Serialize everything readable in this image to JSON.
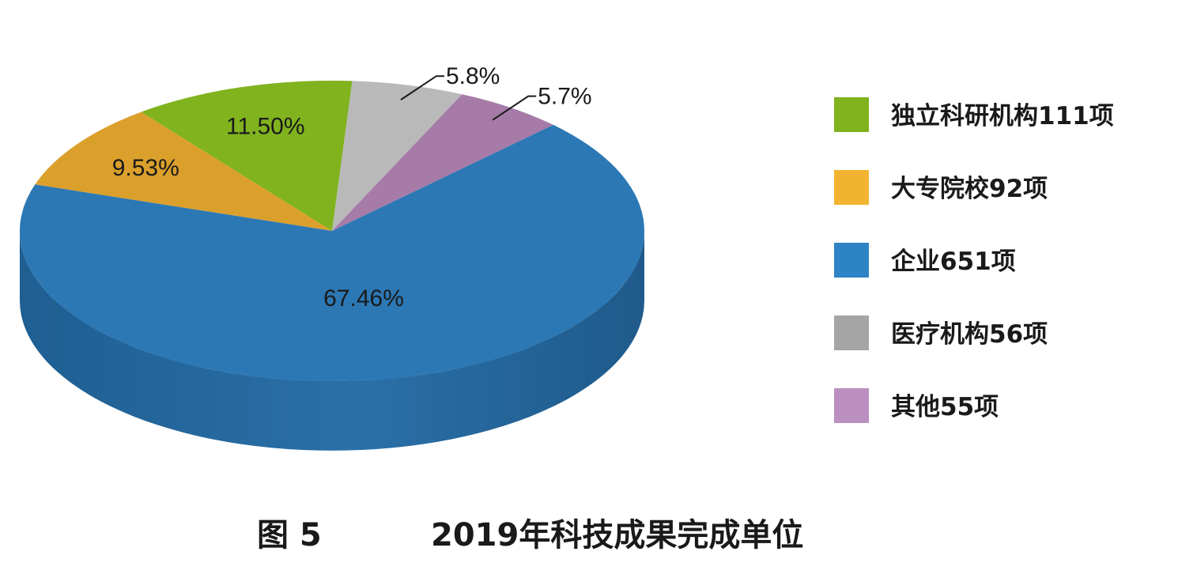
{
  "chart_data": {
    "type": "pie",
    "style": "3d",
    "start_category": "大专院校",
    "direction": "clockwise",
    "slices": [
      {
        "category": "大专院校",
        "legend": "大专院校92项",
        "count": 92,
        "percent_label": "9.53%",
        "percent": 9.53,
        "color": "#DBA02C"
      },
      {
        "category": "独立科研机构",
        "legend": "独立科研机构111项",
        "count": 111,
        "percent_label": "11.50%",
        "percent": 11.5,
        "color": "#80B31E"
      },
      {
        "category": "医疗机构",
        "legend": "医疗机构56项",
        "count": 56,
        "percent_label": "5.8%",
        "percent": 5.8,
        "color": "#B9B9B9"
      },
      {
        "category": "其他",
        "legend": "其他55项",
        "count": 55,
        "percent_label": "5.7%",
        "percent": 5.7,
        "color": "#A67BA8"
      },
      {
        "category": "企业",
        "legend": "企业651项",
        "count": 651,
        "percent_label": "67.46%",
        "percent": 67.46,
        "color": "#2C78B5"
      }
    ],
    "legend_position": "right",
    "legend_order": [
      "独立科研机构",
      "大专院校",
      "企业",
      "医疗机构",
      "其他"
    ],
    "legend_colors": {
      "独立科研机构": "#80B31E",
      "大专院校": "#F2B430",
      "企业": "#2E83C4",
      "医疗机构": "#A5A5A5",
      "其他": "#BB8FC0"
    },
    "caption_figure": "图 5",
    "caption_title": "2019年科技成果完成单位"
  }
}
